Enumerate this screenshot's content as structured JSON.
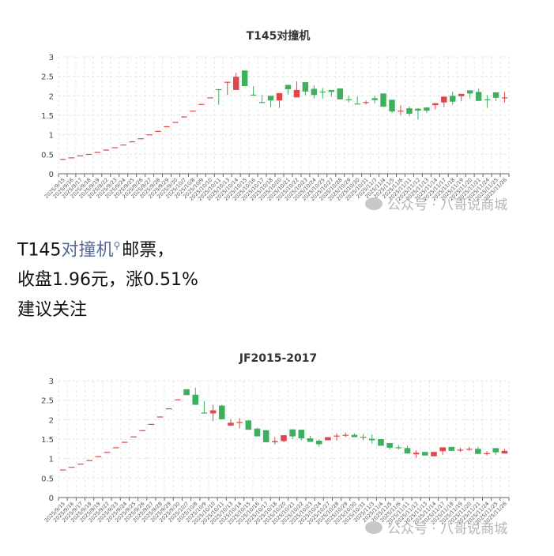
{
  "watermark": "公众号 · 八哥说商城",
  "article": {
    "line1_prefix": "T145",
    "line1_link": "对撞机",
    "line1_suffix": "邮票，",
    "line2": "收盘1.96元，涨0.51%",
    "line3": "建议关注",
    "search_icon": "magnifier-icon"
  },
  "colors": {
    "up": "#e0474b",
    "down": "#3fae5e",
    "grid": "#e6e6e6",
    "axis": "#666666"
  },
  "chart_data": [
    {
      "type": "candlestick",
      "title": "T145对撞机",
      "ylim": [
        0,
        3
      ],
      "yticks": [
        0,
        0.5,
        1,
        1.5,
        2,
        2.5,
        3
      ],
      "grid": true,
      "ohlc_order": [
        "open",
        "close",
        "low",
        "high"
      ],
      "categories": [
        "2025/9/15",
        "2025/9/16",
        "2025/9/17",
        "2025/9/18",
        "2025/9/19",
        "2025/9/22",
        "2025/9/23",
        "2025/9/24",
        "2025/9/25",
        "2025/9/26",
        "2025/9/27",
        "2025/9/28",
        "2025/9/29",
        "2025/9/30",
        "2025/10/7",
        "2025/10/8",
        "2025/10/9",
        "2025/10/10",
        "2025/10/11",
        "2025/10/13",
        "2025/10/14",
        "2025/10/15",
        "2025/10/16",
        "2025/10/17",
        "2025/10/18",
        "2025/10/20",
        "2025/10/21",
        "2025/10/22",
        "2025/10/23",
        "2025/10/24",
        "2025/10/25",
        "2025/10/27",
        "2025/10/28",
        "2025/10/29",
        "2025/10/30",
        "2025/10/31",
        "2025/11/3",
        "2025/11/4",
        "2025/11/5",
        "2025/11/6",
        "2025/11/11",
        "2025/11/12",
        "2025/11/13",
        "2025/11/14",
        "2025/11/17",
        "2025/11/18",
        "2025/11/19",
        "2025/11/20",
        "2025/11/21",
        "2025/11/24",
        "2025/11/25",
        "2025/11/26"
      ],
      "values": [
        [
          0.37,
          0.38,
          0.37,
          0.38
        ],
        [
          0.41,
          0.42,
          0.41,
          0.42
        ],
        [
          0.46,
          0.47,
          0.46,
          0.47
        ],
        [
          0.5,
          0.51,
          0.5,
          0.51
        ],
        [
          0.55,
          0.56,
          0.55,
          0.56
        ],
        [
          0.61,
          0.62,
          0.61,
          0.62
        ],
        [
          0.67,
          0.68,
          0.67,
          0.68
        ],
        [
          0.74,
          0.75,
          0.74,
          0.75
        ],
        [
          0.82,
          0.83,
          0.82,
          0.83
        ],
        [
          0.9,
          0.91,
          0.9,
          0.91
        ],
        [
          1.0,
          1.01,
          1.0,
          1.01
        ],
        [
          1.09,
          1.1,
          1.09,
          1.1
        ],
        [
          1.21,
          1.22,
          1.21,
          1.22
        ],
        [
          1.32,
          1.33,
          1.32,
          1.33
        ],
        [
          1.46,
          1.47,
          1.46,
          1.47
        ],
        [
          1.61,
          1.62,
          1.61,
          1.62
        ],
        [
          1.78,
          1.79,
          1.78,
          1.79
        ],
        [
          1.95,
          1.96,
          1.95,
          1.96
        ],
        [
          2.17,
          2.15,
          1.77,
          2.17
        ],
        [
          2.35,
          2.36,
          2.02,
          2.36
        ],
        [
          2.15,
          2.49,
          2.15,
          2.59
        ],
        [
          2.65,
          2.25,
          2.25,
          2.65
        ],
        [
          2.03,
          2.02,
          2.02,
          2.25
        ],
        [
          1.84,
          1.83,
          1.82,
          2.02
        ],
        [
          2.0,
          1.88,
          1.71,
          2.0
        ],
        [
          1.88,
          2.07,
          1.69,
          2.07
        ],
        [
          2.28,
          2.17,
          2.03,
          2.28
        ],
        [
          1.96,
          2.15,
          1.96,
          2.37
        ],
        [
          2.35,
          2.11,
          2.01,
          2.35
        ],
        [
          2.18,
          2.02,
          1.93,
          2.27
        ],
        [
          2.11,
          2.09,
          1.93,
          2.2
        ],
        [
          2.15,
          2.1,
          1.98,
          2.15
        ],
        [
          2.19,
          1.91,
          1.91,
          2.19
        ],
        [
          1.91,
          1.89,
          1.83,
          2.0
        ],
        [
          1.8,
          1.79,
          1.79,
          1.98
        ],
        [
          1.82,
          1.84,
          1.78,
          1.88
        ],
        [
          1.94,
          1.89,
          1.81,
          2.01
        ],
        [
          2.06,
          1.72,
          1.72,
          2.06
        ],
        [
          1.9,
          1.6,
          1.56,
          1.9
        ],
        [
          1.6,
          1.62,
          1.5,
          1.76
        ],
        [
          1.68,
          1.54,
          1.48,
          1.73
        ],
        [
          1.67,
          1.62,
          1.39,
          1.68
        ],
        [
          1.7,
          1.62,
          1.56,
          1.7
        ],
        [
          1.76,
          1.81,
          1.65,
          1.81
        ],
        [
          1.83,
          1.98,
          1.71,
          1.98
        ],
        [
          2.0,
          1.85,
          1.77,
          2.11
        ],
        [
          1.99,
          2.05,
          1.86,
          2.05
        ],
        [
          2.14,
          2.06,
          1.93,
          2.14
        ],
        [
          2.1,
          1.87,
          1.87,
          2.18
        ],
        [
          1.91,
          1.9,
          1.69,
          2.02
        ],
        [
          2.09,
          1.95,
          1.86,
          2.09
        ],
        [
          1.95,
          1.96,
          1.83,
          2.1
        ]
      ]
    },
    {
      "type": "candlestick",
      "title": "JF2015-2017",
      "ylim": [
        0,
        3
      ],
      "yticks": [
        0,
        0.5,
        1,
        1.5,
        2,
        2.5,
        3
      ],
      "grid": true,
      "ohlc_order": [
        "open",
        "close",
        "low",
        "high"
      ],
      "categories": [
        "2025/9/15",
        "2025/9/16",
        "2025/9/17",
        "2025/9/18",
        "2025/9/19",
        "2025/9/22",
        "2025/9/23",
        "2025/9/24",
        "2025/9/25",
        "2025/9/26",
        "2025/9/27",
        "2025/9/28",
        "2025/9/29",
        "2025/9/30",
        "2025/10/7",
        "2025/10/8",
        "2025/10/9",
        "2025/10/10",
        "2025/10/11",
        "2025/10/13",
        "2025/10/14",
        "2025/10/15",
        "2025/10/16",
        "2025/10/17",
        "2025/10/18",
        "2025/10/20",
        "2025/10/21",
        "2025/10/22",
        "2025/10/23",
        "2025/10/24",
        "2025/10/27",
        "2025/10/28",
        "2025/10/29",
        "2025/10/30",
        "2025/10/31",
        "2025/11/3",
        "2025/11/4",
        "2025/11/5",
        "2025/11/6",
        "2025/11/11",
        "2025/11/12",
        "2025/11/13",
        "2025/11/14",
        "2025/11/17",
        "2025/11/18",
        "2025/11/19",
        "2025/11/20",
        "2025/11/21",
        "2025/11/24",
        "2025/11/25",
        "2025/11/26"
      ],
      "values": [
        [
          0.71,
          0.72,
          0.71,
          0.72
        ],
        [
          0.78,
          0.79,
          0.78,
          0.79
        ],
        [
          0.86,
          0.87,
          0.86,
          0.87
        ],
        [
          0.95,
          0.96,
          0.95,
          0.96
        ],
        [
          1.05,
          1.06,
          1.05,
          1.06
        ],
        [
          1.16,
          1.17,
          1.16,
          1.17
        ],
        [
          1.28,
          1.29,
          1.28,
          1.29
        ],
        [
          1.42,
          1.43,
          1.42,
          1.43
        ],
        [
          1.56,
          1.57,
          1.56,
          1.57
        ],
        [
          1.72,
          1.73,
          1.72,
          1.73
        ],
        [
          1.88,
          1.89,
          1.88,
          1.89
        ],
        [
          2.07,
          2.08,
          2.07,
          2.08
        ],
        [
          2.28,
          2.29,
          2.28,
          2.29
        ],
        [
          2.51,
          2.52,
          2.51,
          2.52
        ],
        [
          2.78,
          2.63,
          2.63,
          2.78
        ],
        [
          2.64,
          2.38,
          2.38,
          2.82
        ],
        [
          2.18,
          2.16,
          2.16,
          2.48
        ],
        [
          2.16,
          2.24,
          1.96,
          2.38
        ],
        [
          2.36,
          2.01,
          2.01,
          2.38
        ],
        [
          1.85,
          1.92,
          1.84,
          2.01
        ],
        [
          1.93,
          1.94,
          1.77,
          2.04
        ],
        [
          1.98,
          1.74,
          1.74,
          1.98
        ],
        [
          1.77,
          1.57,
          1.57,
          1.79
        ],
        [
          1.73,
          1.42,
          1.42,
          1.73
        ],
        [
          1.42,
          1.45,
          1.36,
          1.55
        ],
        [
          1.45,
          1.6,
          1.42,
          1.6
        ],
        [
          1.75,
          1.57,
          1.5,
          1.75
        ],
        [
          1.74,
          1.52,
          1.47,
          1.74
        ],
        [
          1.52,
          1.43,
          1.43,
          1.58
        ],
        [
          1.46,
          1.37,
          1.31,
          1.49
        ],
        [
          1.47,
          1.55,
          1.47,
          1.55
        ],
        [
          1.57,
          1.59,
          1.46,
          1.65
        ],
        [
          1.59,
          1.61,
          1.55,
          1.67
        ],
        [
          1.61,
          1.55,
          1.55,
          1.65
        ],
        [
          1.56,
          1.55,
          1.47,
          1.63
        ],
        [
          1.51,
          1.47,
          1.38,
          1.62
        ],
        [
          1.5,
          1.33,
          1.33,
          1.5
        ],
        [
          1.4,
          1.28,
          1.23,
          1.4
        ],
        [
          1.29,
          1.28,
          1.23,
          1.35
        ],
        [
          1.27,
          1.13,
          1.13,
          1.33
        ],
        [
          1.11,
          1.15,
          1.02,
          1.21
        ],
        [
          1.17,
          1.08,
          1.08,
          1.17
        ],
        [
          1.06,
          1.17,
          1.06,
          1.17
        ],
        [
          1.19,
          1.29,
          1.1,
          1.29
        ],
        [
          1.3,
          1.2,
          1.2,
          1.3
        ],
        [
          1.22,
          1.23,
          1.17,
          1.28
        ],
        [
          1.24,
          1.25,
          1.2,
          1.3
        ],
        [
          1.25,
          1.12,
          1.12,
          1.3
        ],
        [
          1.12,
          1.14,
          1.08,
          1.19
        ],
        [
          1.27,
          1.16,
          1.09,
          1.27
        ],
        [
          1.13,
          1.2,
          1.13,
          1.25
        ]
      ]
    }
  ]
}
